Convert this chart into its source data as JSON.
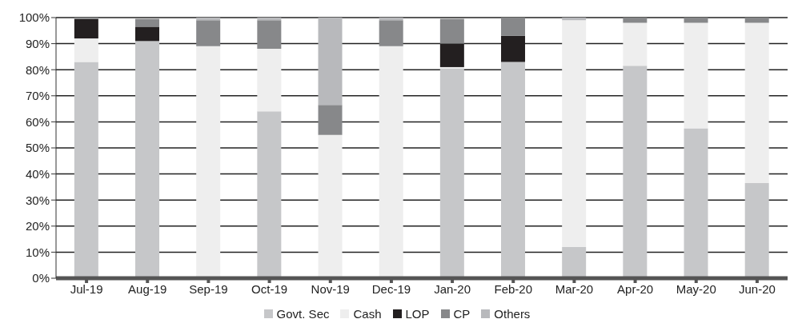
{
  "chart_data": {
    "type": "bar",
    "stacked": true,
    "categories": [
      "Jul-19",
      "Aug-19",
      "Sep-19",
      "Oct-19",
      "Nov-19",
      "Dec-19",
      "Jan-20",
      "Feb-20",
      "Mar-20",
      "Apr-20",
      "May-20",
      "Jun-20"
    ],
    "series": [
      {
        "name": "Govt. Sec",
        "color": "#c6c7c9",
        "values": [
          83,
          91,
          0,
          64,
          0,
          0,
          80.5,
          83,
          12,
          81.5,
          57.5,
          36.5
        ]
      },
      {
        "name": "Cash",
        "color": "#eeeeee",
        "values": [
          9,
          null,
          89,
          24,
          55,
          89,
          0.5,
          0,
          87,
          16.5,
          40.5,
          61.5
        ]
      },
      {
        "name": "LOP",
        "color": "#231f20",
        "values": [
          7.5,
          5.5,
          0,
          0,
          0,
          0,
          9,
          10,
          0,
          0,
          0,
          0
        ]
      },
      {
        "name": "CP",
        "color": "#87888a",
        "values": [
          0.5,
          3,
          10,
          11,
          11.5,
          10,
          9.5,
          7,
          0,
          2,
          2,
          2
        ]
      },
      {
        "name": "Others",
        "color": "#b8b9bc",
        "values": [
          0,
          0,
          1,
          1,
          33.5,
          1,
          null,
          0,
          1,
          0,
          0,
          0
        ]
      }
    ],
    "ylim": [
      0,
      100
    ],
    "yticks": [
      {
        "value": 0,
        "label": "0%"
      },
      {
        "value": 10,
        "label": "10%"
      },
      {
        "value": 20,
        "label": "20%"
      },
      {
        "value": 30,
        "label": "30%"
      },
      {
        "value": 40,
        "label": "40%"
      },
      {
        "value": 50,
        "label": "50%"
      },
      {
        "value": 60,
        "label": "60%"
      },
      {
        "value": 70,
        "label": "70%"
      },
      {
        "value": 80,
        "label": "80%"
      },
      {
        "value": 90,
        "label": "90%"
      },
      {
        "value": 100,
        "label": "100%"
      }
    ],
    "grid": "y",
    "legend": "bottom"
  }
}
